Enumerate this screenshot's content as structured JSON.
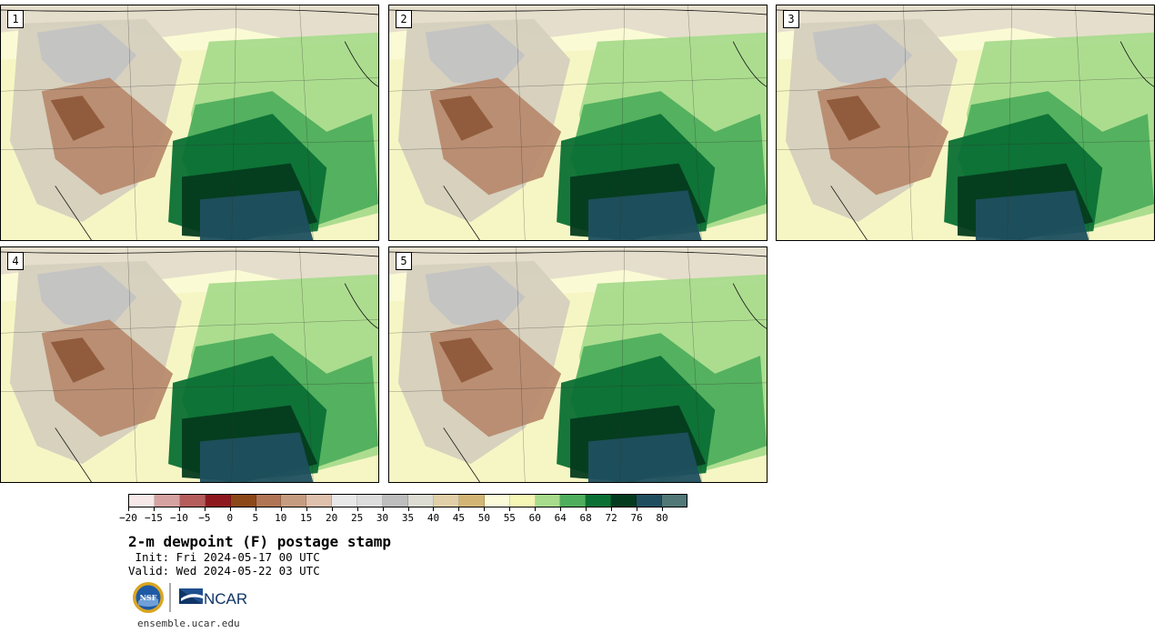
{
  "panels": [
    {
      "label": "1"
    },
    {
      "label": "2"
    },
    {
      "label": "3"
    },
    {
      "label": "4"
    },
    {
      "label": "5"
    }
  ],
  "colorbar": {
    "colors": [
      "#f6e8e8",
      "#d6a1a1",
      "#b55d5d",
      "#8e1a1f",
      "#8c4818",
      "#b07555",
      "#c69c80",
      "#dec0ad",
      "#e8e8e8",
      "#dcdcdc",
      "#bdbdbd",
      "#dcdcd3",
      "#e1d0a7",
      "#d2b575",
      "#fbfbd9",
      "#f6f6b5",
      "#a8db8c",
      "#4fae5d",
      "#0b7034",
      "#043b1e",
      "#1f4f5f",
      "#517777"
    ],
    "ticks": [
      "−20",
      "−15",
      "−10",
      "−5",
      "0",
      "5",
      "10",
      "15",
      "20",
      "25",
      "30",
      "35",
      "40",
      "45",
      "50",
      "55",
      "60",
      "64",
      "68",
      "72",
      "76",
      "80"
    ]
  },
  "title": "2-m dewpoint (F) postage stamp",
  "init": " Init: Fri 2024-05-17 00 UTC",
  "valid": "Valid: Wed 2024-05-22 03 UTC",
  "logos": {
    "nsf": "NSF",
    "ncar": "NCAR"
  },
  "url": "ensemble.ucar.edu"
}
